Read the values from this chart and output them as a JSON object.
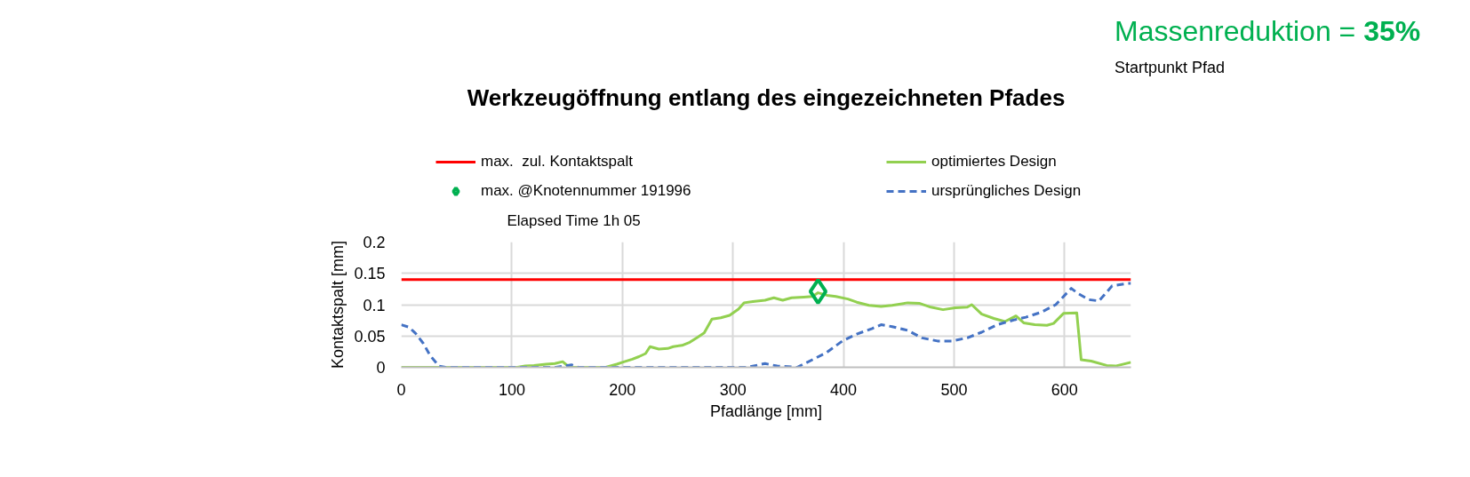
{
  "chart_data": {
    "type": "line",
    "title": "Werkzeugöffnung entlang des eingezeichneten Pfades",
    "xlabel": "Pfadlänge [mm]",
    "ylabel": "Kontaktspalt [mm]",
    "xlim": [
      0,
      660
    ],
    "ylim": [
      0,
      0.2
    ],
    "xticks": [
      0,
      100,
      200,
      300,
      400,
      500,
      600
    ],
    "yticks": [
      0,
      0.05,
      0.1,
      0.15,
      0.2
    ],
    "grid": true,
    "legend": "top",
    "annotations": [
      "Elapsed Time 1h 05",
      "Massenreduktion = 35%",
      "Startpunkt Pfad"
    ],
    "series": [
      {
        "name": "max.  zul. Kontaktspalt",
        "color": "#ff0000",
        "x": [
          0,
          660
        ],
        "values": [
          0.14,
          0.14
        ]
      },
      {
        "name": "optimiertes Design",
        "color": "#92d050",
        "x": [
          0,
          35,
          70,
          105,
          112,
          120,
          131,
          139,
          146,
          152,
          160,
          185,
          195,
          200,
          209,
          215,
          221,
          225,
          233,
          241,
          246,
          254,
          261,
          268,
          274,
          281,
          289,
          297,
          305,
          310,
          318,
          329,
          337,
          345,
          353,
          364,
          372,
          377,
          385,
          393,
          404,
          412,
          423,
          434,
          444,
          458,
          469,
          479,
          490,
          501,
          512,
          516,
          525,
          536,
          546,
          556,
          563,
          573,
          584,
          590,
          599,
          611,
          615,
          624,
          638,
          646,
          660
        ],
        "values": [
          0,
          0,
          0,
          0,
          0.002,
          0.003,
          0.005,
          0.006,
          0.009,
          0,
          0,
          0,
          0.005,
          0.008,
          0.013,
          0.017,
          0.022,
          0.033,
          0.029,
          0.03,
          0.033,
          0.035,
          0.04,
          0.048,
          0.055,
          0.077,
          0.079,
          0.083,
          0.093,
          0.103,
          0.105,
          0.107,
          0.111,
          0.107,
          0.111,
          0.112,
          0.113,
          0.119,
          0.115,
          0.113,
          0.109,
          0.104,
          0.099,
          0.097,
          0.099,
          0.103,
          0.102,
          0.096,
          0.092,
          0.095,
          0.096,
          0.1,
          0.085,
          0.078,
          0.073,
          0.082,
          0.071,
          0.068,
          0.067,
          0.07,
          0.086,
          0.087,
          0.012,
          0.01,
          0.003,
          0.002,
          0.008
        ]
      },
      {
        "name": "max. @Knotennummer 191996",
        "color": "#00b050",
        "type": "scatter",
        "marker": "diamond",
        "x": [
          377
        ],
        "values": [
          0.121
        ]
      },
      {
        "name": "ursprüngliches Design",
        "color": "#4472c4",
        "line_style": "dashed",
        "x": [
          0,
          7,
          13,
          20,
          26,
          34,
          40,
          100,
          140,
          147,
          154,
          160,
          220,
          300,
          313,
          329,
          340,
          358,
          374,
          385,
          399,
          412,
          426,
          434,
          444,
          458,
          471,
          485,
          498,
          512,
          525,
          539,
          555,
          565,
          579,
          592,
          606,
          612,
          622,
          631,
          643,
          657,
          660
        ],
        "values": [
          0.068,
          0.064,
          0.054,
          0.038,
          0.019,
          0.002,
          0,
          0,
          0,
          0.002,
          0.004,
          0,
          0,
          0,
          0,
          0.006,
          0.002,
          0,
          0.014,
          0.024,
          0.042,
          0.053,
          0.062,
          0.068,
          0.065,
          0.059,
          0.047,
          0.042,
          0.042,
          0.047,
          0.056,
          0.068,
          0.076,
          0.08,
          0.088,
          0.1,
          0.126,
          0.118,
          0.108,
          0.106,
          0.13,
          0.134,
          0.134
        ]
      }
    ]
  }
}
